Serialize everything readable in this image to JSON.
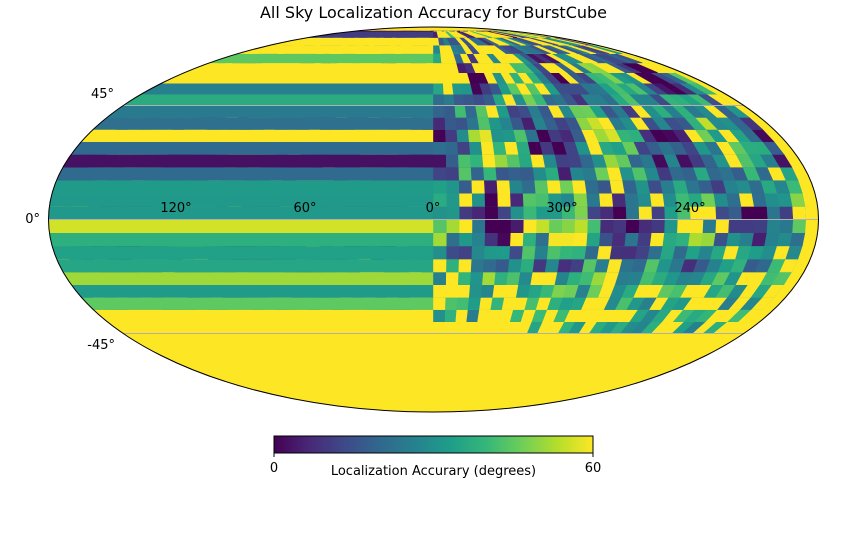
{
  "chart_data": {
    "type": "heatmap",
    "projection": "mollweide",
    "title": "All Sky Localization Accuracy for BurstCube",
    "longitude_tick_labels": [
      "120°",
      "60°",
      "0°",
      "300°",
      "240°"
    ],
    "longitude_tick_values": [
      120,
      60,
      0,
      300,
      240
    ],
    "latitude_tick_labels": [
      "45°",
      "0°",
      "-45°"
    ],
    "latitude_tick_values": [
      45,
      0,
      -45
    ],
    "grid": true,
    "colormap": "viridis",
    "colorbar": {
      "label": "Localization Accurary (degrees)",
      "min": 0,
      "max": 60,
      "tick_labels": [
        "0",
        "60"
      ],
      "placement": "bottom"
    },
    "value_field": {
      "description_units": "degrees",
      "saturation_value": 60,
      "regions": [
        {
          "lat_range": [
            -90,
            -45
          ],
          "lon_range": [
            0,
            360
          ],
          "value": 60
        },
        {
          "lat_range": [
            -45,
            -20
          ],
          "lon_range": [
            0,
            360
          ],
          "value_range": [
            25,
            60
          ]
        },
        {
          "lat_range": [
            -20,
            60
          ],
          "lon_range": [
            0,
            360
          ],
          "value_range": [
            0,
            60
          ]
        },
        {
          "lat_range": [
            60,
            90
          ],
          "lon_range": [
            0,
            360
          ],
          "value_range": [
            0,
            60
          ]
        }
      ]
    }
  },
  "colors": {
    "viridis_stops": [
      "#440154",
      "#482878",
      "#3e4a89",
      "#31688e",
      "#26828e",
      "#1f9e89",
      "#35b779",
      "#6ece58",
      "#b5de2b",
      "#fde725"
    ],
    "grid": "#b0b0b0",
    "outline": "#000000"
  }
}
